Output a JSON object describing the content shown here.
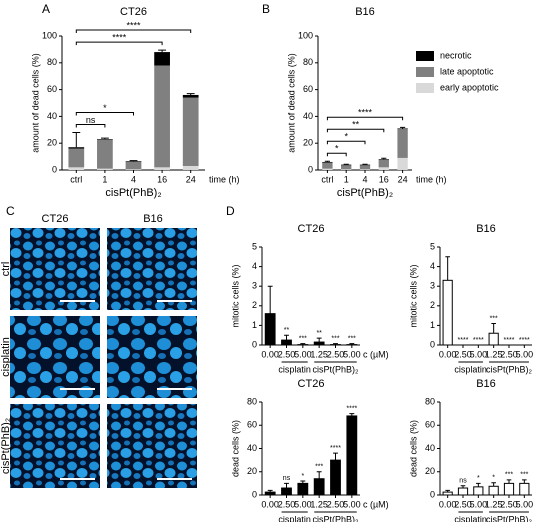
{
  "figure": {
    "panel_labels": [
      "A",
      "B",
      "C",
      "D"
    ],
    "image_panel": {
      "columns": [
        "CT26",
        "B16"
      ],
      "rows": [
        "ctrl",
        "cisplatin",
        "cisPt(PhB)₂"
      ]
    }
  },
  "chart_data": [
    {
      "type": "bar",
      "stacked": true,
      "title": "CT26",
      "ylabel": "amount of dead cells (%)",
      "xlabel": "cisPt(PhB)₂",
      "x_unit": "time (h)",
      "categories": [
        "ctrl",
        "1",
        "4",
        "16",
        "24"
      ],
      "ylim": [
        0,
        100
      ],
      "yticks": [
        0,
        20,
        40,
        60,
        80,
        100
      ],
      "series": [
        {
          "color": "#000000",
          "values": [
            1,
            0.5,
            0.5,
            10,
            2
          ]
        },
        {
          "color": "#808080",
          "values": [
            14,
            21.5,
            5.5,
            76,
            51
          ]
        },
        {
          "color": "#d9d9d9",
          "values": [
            2,
            1,
            0.5,
            2,
            3
          ]
        }
      ],
      "errors": [
        11,
        0.8,
        0.5,
        1.5,
        1
      ],
      "significance": [
        null,
        "ns",
        "*",
        "****",
        "****"
      ]
    },
    {
      "type": "bar",
      "stacked": true,
      "title": "B16",
      "ylabel": "amount of dead cells (%)",
      "xlabel": "cisPt(PhB)₂",
      "x_unit": "time (h)",
      "categories": [
        "ctrl",
        "1",
        "4",
        "16",
        "24"
      ],
      "ylim": [
        0,
        100
      ],
      "yticks": [
        0,
        20,
        40,
        60,
        80,
        100
      ],
      "legend": "upper right",
      "series": [
        {
          "name": "necrotic",
          "color": "#000000",
          "values": [
            0.5,
            0.5,
            0.5,
            0.5,
            0.5
          ]
        },
        {
          "name": "late apoptotic",
          "color": "#808080",
          "values": [
            4.5,
            3,
            3,
            5.5,
            21.5
          ]
        },
        {
          "name": "early apoptotic",
          "color": "#d9d9d9",
          "values": [
            1,
            0.5,
            0.5,
            2,
            9
          ]
        }
      ],
      "errors": [
        0.5,
        0.3,
        0.3,
        0.8,
        0.8
      ],
      "significance": [
        null,
        "*",
        "*",
        "**",
        "****"
      ]
    },
    {
      "type": "bar",
      "title": "CT26",
      "ylabel": "mitotic cells (%)",
      "x_unit": "c (µM)",
      "categories": [
        "0.00",
        "2.50",
        "5.00",
        "1.25",
        "2.50",
        "5.00"
      ],
      "group_labels": [
        "cisplatin",
        "cisPt(PhB)₂"
      ],
      "ylim": [
        0,
        5
      ],
      "yticks": [
        0,
        1,
        2,
        3,
        4,
        5
      ],
      "color": "#000000",
      "values": [
        1.6,
        0.25,
        0.02,
        0.15,
        0.02,
        0.02
      ],
      "errors": [
        1.4,
        0.25,
        0.05,
        0.2,
        0.05,
        0.05
      ],
      "significance": [
        null,
        "**",
        "***",
        "**",
        "***",
        "***"
      ]
    },
    {
      "type": "bar",
      "title": "B16",
      "ylabel": "mitotic cells (%)",
      "categories": [
        "0.00",
        "2.50",
        "5.00",
        "1.25",
        "2.50",
        "5.00"
      ],
      "group_labels": [
        "cisplatin",
        "cisPt(PhB)₂"
      ],
      "ylim": [
        0,
        5
      ],
      "yticks": [
        0,
        1,
        2,
        3,
        4,
        5
      ],
      "color": "#ffffff",
      "values": [
        3.3,
        0,
        0,
        0.6,
        0,
        0
      ],
      "errors": [
        1.2,
        0,
        0,
        0.5,
        0,
        0
      ],
      "significance": [
        null,
        "****",
        "****",
        "***",
        "****",
        "****"
      ]
    },
    {
      "type": "bar",
      "title": "CT26",
      "ylabel": "dead cells (%)",
      "x_unit": "c (µM)",
      "categories": [
        "0.00",
        "2.50",
        "5.00",
        "1.25",
        "2.50",
        "5.00"
      ],
      "group_labels": [
        "cisplatin",
        "cisPt(PhB)₂"
      ],
      "ylim": [
        0,
        80
      ],
      "yticks": [
        0,
        20,
        40,
        60,
        80
      ],
      "color": "#000000",
      "values": [
        2.5,
        6,
        10,
        14,
        30,
        68
      ],
      "errors": [
        1.5,
        4,
        2,
        6,
        6,
        2
      ],
      "significance": [
        null,
        "ns",
        "*",
        "***",
        "****",
        "****"
      ]
    },
    {
      "type": "bar",
      "title": "B16",
      "ylabel": "dead cells (%)",
      "categories": [
        "0.00",
        "2.50",
        "5.00",
        "1.25",
        "2.50",
        "5.00"
      ],
      "group_labels": [
        "cisplatin",
        "cisPt(PhB)₂"
      ],
      "ylim": [
        0,
        80
      ],
      "yticks": [
        0,
        20,
        40,
        60,
        80
      ],
      "color": "#ffffff",
      "values": [
        2.5,
        6,
        7,
        7.5,
        10,
        10
      ],
      "errors": [
        1.5,
        2,
        3,
        3,
        3,
        3
      ],
      "significance": [
        null,
        "ns",
        "*",
        "*",
        "***",
        "***"
      ]
    }
  ]
}
